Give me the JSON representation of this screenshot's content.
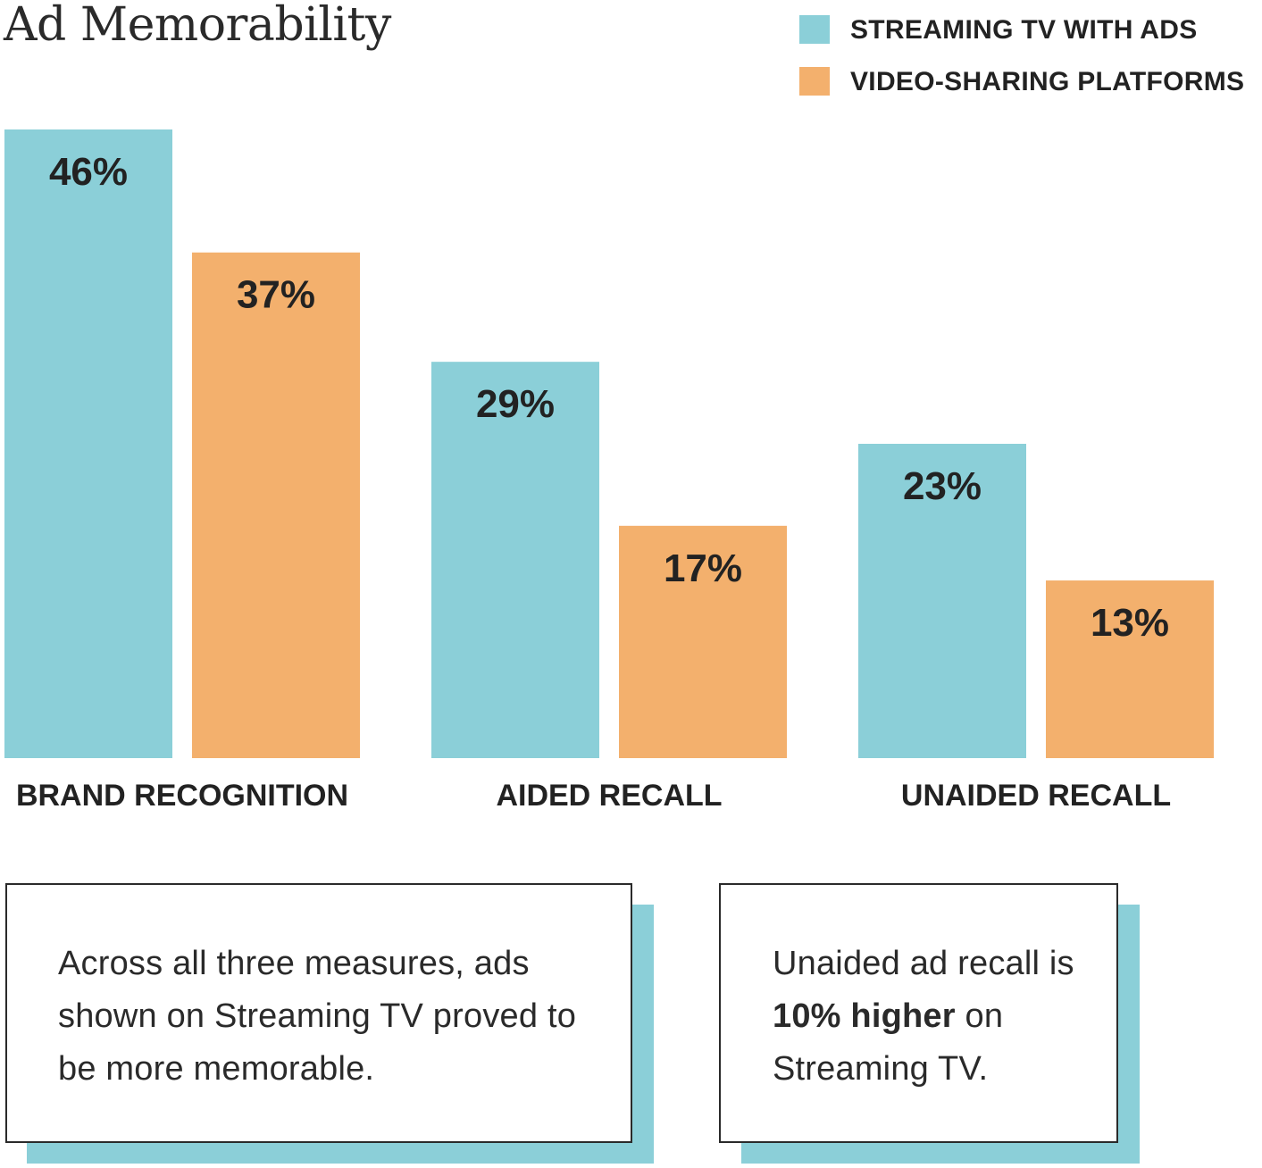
{
  "chart_data": {
    "type": "bar",
    "title": "Ad Memorability",
    "categories": [
      "BRAND RECOGNITION",
      "AIDED RECALL",
      "UNAIDED RECALL"
    ],
    "series": [
      {
        "name": "STREAMING TV WITH ADS",
        "values": [
          46,
          29,
          23
        ],
        "labels": [
          "46%",
          "29%",
          "23%"
        ],
        "color": "#8bcfd8"
      },
      {
        "name": "VIDEO-SHARING PLATFORMS",
        "values": [
          37,
          17,
          13
        ],
        "labels": [
          "37%",
          "17%",
          "13%"
        ],
        "color": "#f3b06d"
      }
    ],
    "ylim": [
      0,
      46
    ],
    "grid": false,
    "legend_position": "top-right"
  },
  "callouts": [
    {
      "text": "Across all three measures, ads shown on Streaming TV proved to be more memorable."
    },
    {
      "prefix": "Unaided ad recall is ",
      "bold": "10% higher",
      "suffix": " on Streaming TV."
    }
  ],
  "colors": {
    "text": "#222222",
    "callout_shadow": "#8bcfd8",
    "callout_border": "#2a2a2a"
  }
}
